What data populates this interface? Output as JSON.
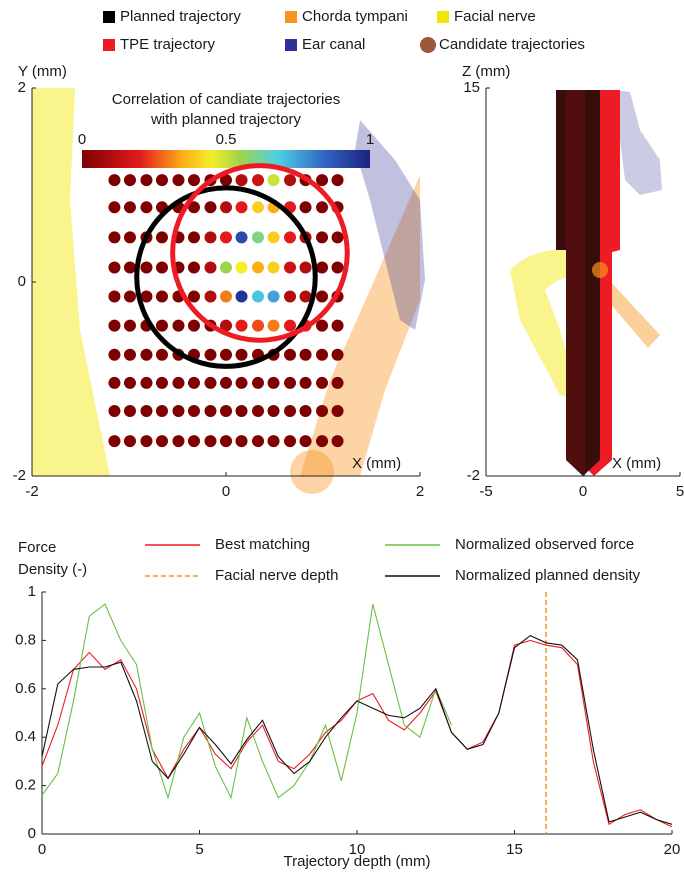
{
  "chart_data": [
    {
      "type": "dot_grid",
      "legend": [
        {
          "name": "Planned trajectory",
          "color": "#000000",
          "marker": "square"
        },
        {
          "name": "Chorda tympani",
          "color": "#f7941d",
          "marker": "square"
        },
        {
          "name": "Facial nerve",
          "color": "#f2e600",
          "marker": "square"
        },
        {
          "name": "TPE trajectory",
          "color": "#ed1c24",
          "marker": "square"
        },
        {
          "name": "Ear canal",
          "color": "#2e3192",
          "marker": "square"
        },
        {
          "name": "Candidate trajectories",
          "color": "#8b3a1a",
          "marker": "circle"
        }
      ],
      "colorbar_title": [
        "Correlation of candiate trajectories",
        "with planned trajectory"
      ],
      "clim": [
        0,
        1
      ],
      "cticks": [
        0,
        0.5,
        1
      ],
      "xlabel": "X   (mm)",
      "ylabel": "Y   (mm)",
      "xlim": [
        -2,
        2
      ],
      "ylim": [
        -2,
        2
      ],
      "xticks": [
        -2,
        0,
        2
      ],
      "yticks": [
        -2,
        0,
        2
      ],
      "x": [
        -1.15,
        -0.99,
        -0.82,
        -0.66,
        -0.49,
        -0.33,
        -0.16,
        0,
        0.16,
        0.33,
        0.49,
        0.66,
        0.82,
        0.99,
        1.15
      ],
      "y": [
        1.05,
        0.77,
        0.46,
        0.15,
        -0.15,
        -0.45,
        -0.75,
        -1.04,
        -1.33,
        -1.64
      ],
      "values": [
        [
          0,
          0,
          0,
          0,
          0,
          0,
          0,
          0,
          0.1,
          0.15,
          0.5,
          0.1,
          0,
          0,
          0
        ],
        [
          0,
          0,
          0,
          0,
          0,
          0,
          0,
          0.1,
          0.2,
          0.4,
          0.35,
          0.2,
          0,
          0,
          0
        ],
        [
          0,
          0,
          0,
          0,
          0,
          0,
          0.1,
          0.2,
          0.9,
          0.6,
          0.4,
          0.2,
          0.1,
          0,
          0
        ],
        [
          0,
          0,
          0,
          0,
          0,
          0,
          0.1,
          0.55,
          0.45,
          0.35,
          0.4,
          0.15,
          0.1,
          0,
          0
        ],
        [
          0,
          0,
          0,
          0,
          0,
          0,
          0.1,
          0.3,
          0.95,
          0.7,
          0.75,
          0.1,
          0.1,
          0,
          0
        ],
        [
          0,
          0,
          0,
          0,
          0,
          0,
          0,
          0.1,
          0.2,
          0.25,
          0.3,
          0.2,
          0.2,
          0,
          0
        ],
        [
          0,
          0,
          0,
          0,
          0,
          0,
          0,
          0,
          0,
          0,
          0,
          0,
          0,
          0,
          0
        ],
        [
          0,
          0,
          0,
          0,
          0,
          0,
          0,
          0,
          0,
          0,
          0,
          0,
          0,
          0,
          0
        ],
        [
          0,
          0,
          0,
          0,
          0,
          0,
          0,
          0,
          0,
          0,
          0,
          0,
          0,
          0,
          0
        ],
        [
          0,
          0,
          0,
          0,
          0,
          0,
          0,
          0,
          0,
          0,
          0,
          0,
          0,
          0,
          0
        ]
      ],
      "circles": [
        {
          "cx": 0,
          "cy": 0.05,
          "r": 0.92,
          "color": "#000000"
        },
        {
          "cx": 0.35,
          "cy": 0.3,
          "r": 0.9,
          "color": "#ed1c24"
        }
      ]
    },
    {
      "type": "axes",
      "xlabel": "X   (mm)",
      "ylabel": "Z   (mm)",
      "xlim": [
        -5,
        5
      ],
      "ylim": [
        -2,
        15
      ],
      "xticks": [
        -5,
        0,
        5
      ],
      "yticks": [
        -2,
        15
      ]
    },
    {
      "type": "line",
      "xlabel": "Trajectory depth  (mm)",
      "ylabel": [
        "Force",
        "Density (-)"
      ],
      "xlim": [
        0,
        20
      ],
      "ylim": [
        0,
        1
      ],
      "xticks": [
        0,
        5,
        10,
        15,
        20
      ],
      "yticks": [
        0,
        0.2,
        0.4,
        0.6,
        0.8,
        1
      ],
      "x": [
        0,
        0.5,
        1,
        1.5,
        2,
        2.5,
        3,
        3.5,
        4,
        4.5,
        5,
        5.5,
        6,
        6.5,
        7,
        7.5,
        8,
        8.5,
        9,
        9.5,
        10,
        10.5,
        11,
        11.5,
        12,
        12.5,
        13,
        13.5,
        14,
        14.5,
        15,
        15.5,
        16,
        16.5,
        17,
        17.5,
        18,
        18.5,
        19,
        19.5,
        20
      ],
      "series": [
        {
          "name": "Best matching",
          "color": "#ed1c24",
          "values": [
            0.28,
            0.45,
            0.68,
            0.75,
            0.68,
            0.72,
            0.6,
            0.35,
            0.23,
            0.35,
            0.44,
            0.33,
            0.27,
            0.38,
            0.45,
            0.3,
            0.27,
            0.33,
            0.42,
            0.47,
            0.55,
            0.58,
            0.47,
            0.43,
            0.5,
            0.59,
            0.42,
            0.35,
            0.38,
            0.5,
            0.78,
            0.8,
            0.78,
            0.77,
            0.7,
            0.3,
            0.04,
            0.08,
            0.1,
            0.06,
            0.03
          ]
        },
        {
          "name": "Normalized observed force",
          "color": "#6cbf45",
          "values": [
            0.16,
            0.25,
            0.55,
            0.9,
            0.95,
            0.8,
            0.7,
            0.35,
            0.15,
            0.4,
            0.5,
            0.28,
            0.15,
            0.48,
            0.3,
            0.15,
            0.2,
            0.3,
            0.45,
            0.22,
            0.5,
            0.95,
            0.7,
            0.45,
            0.4,
            0.6,
            0.45,
            null,
            null,
            null,
            null,
            null,
            null,
            null,
            null,
            null,
            null,
            null,
            null,
            null,
            null
          ]
        },
        {
          "name": "Normalized planned density",
          "color": "#111111",
          "values": [
            0.32,
            0.62,
            0.68,
            0.69,
            0.69,
            0.71,
            0.55,
            0.3,
            0.23,
            0.33,
            0.44,
            0.37,
            0.29,
            0.39,
            0.47,
            0.32,
            0.25,
            0.3,
            0.4,
            0.48,
            0.55,
            0.52,
            0.49,
            0.48,
            0.52,
            0.6,
            0.42,
            0.35,
            0.37,
            0.5,
            0.77,
            0.82,
            0.79,
            0.78,
            0.72,
            0.35,
            0.05,
            0.07,
            0.09,
            0.06,
            0.04
          ]
        }
      ],
      "reference_line": {
        "name": "Facial nerve depth",
        "x": 16,
        "color": "#f7941d"
      }
    }
  ]
}
